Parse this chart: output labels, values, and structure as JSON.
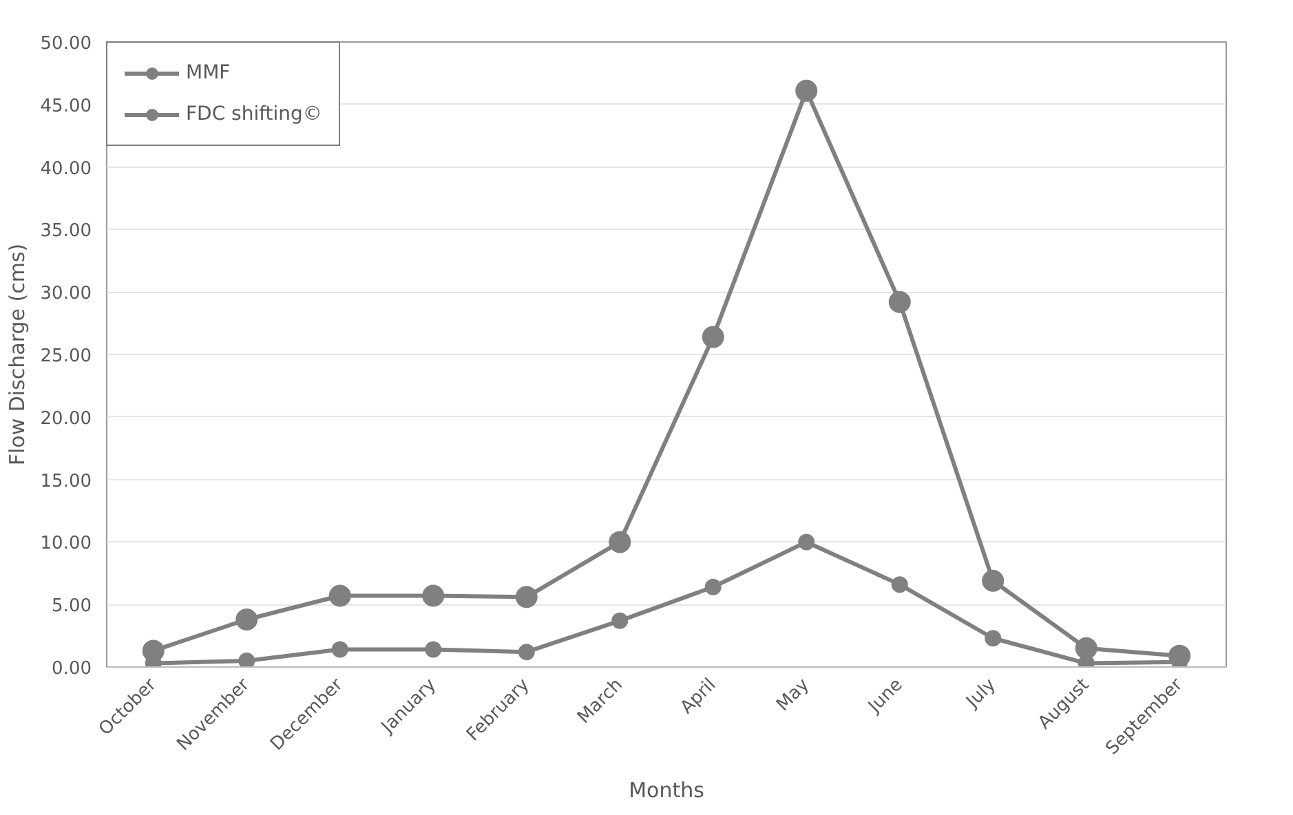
{
  "chart_data": {
    "type": "line",
    "xlabel": "Months",
    "ylabel": "Flow Discharge (cms)",
    "categories": [
      "October",
      "November",
      "December",
      "January",
      "February",
      "March",
      "April",
      "May",
      "June",
      "July",
      "August",
      "September"
    ],
    "series": [
      {
        "name": "MMF",
        "color": "#808080",
        "values": [
          1.3,
          3.8,
          5.7,
          5.7,
          5.6,
          10.0,
          26.4,
          46.1,
          29.2,
          6.9,
          1.5,
          0.9
        ]
      },
      {
        "name": "FDC shifting©",
        "color": "#808080",
        "values": [
          0.3,
          0.5,
          1.4,
          1.4,
          1.2,
          3.7,
          6.4,
          10.0,
          6.6,
          2.3,
          0.3,
          0.4
        ]
      }
    ],
    "ylim": [
      0,
      50
    ],
    "yticks": [
      {
        "value": 0,
        "label": "0.00"
      },
      {
        "value": 5,
        "label": "5.00"
      },
      {
        "value": 10,
        "label": "10.00"
      },
      {
        "value": 15,
        "label": "15.00"
      },
      {
        "value": 20,
        "label": "20.00"
      },
      {
        "value": 25,
        "label": "25.00"
      },
      {
        "value": 30,
        "label": "30.00"
      },
      {
        "value": 35,
        "label": "35.00"
      },
      {
        "value": 40,
        "label": "40.00"
      },
      {
        "value": 45,
        "label": "45.00"
      },
      {
        "value": 50,
        "label": "50.00"
      }
    ],
    "grid": "y",
    "legend": "top left",
    "marker": "circle",
    "line_style": "solid"
  }
}
